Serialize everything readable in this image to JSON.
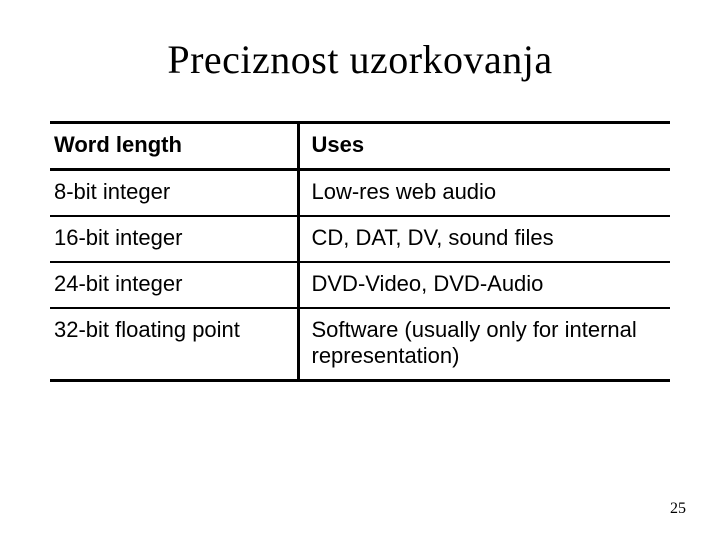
{
  "title": "Preciznost uzorkovanja",
  "table": {
    "columns": [
      "Word length",
      "Uses"
    ],
    "rows": [
      [
        "8-bit integer",
        "Low-res web audio"
      ],
      [
        "16-bit integer",
        "CD, DAT, DV, sound files"
      ],
      [
        "24-bit integer",
        "DVD-Video, DVD-Audio"
      ],
      [
        "32-bit floating point",
        "Software (usually only for internal representation)"
      ]
    ],
    "header_fontweight": "bold",
    "border_color": "#000000",
    "outer_border_width": 3,
    "inner_border_width": 2,
    "font_family_body": "Verdana",
    "font_size_body": 22,
    "col_widths_pct": [
      40,
      60
    ]
  },
  "page_number": "25",
  "colors": {
    "background": "#ffffff",
    "text": "#000000"
  },
  "title_style": {
    "font_family": "Times New Roman",
    "font_size": 40,
    "align": "center"
  }
}
